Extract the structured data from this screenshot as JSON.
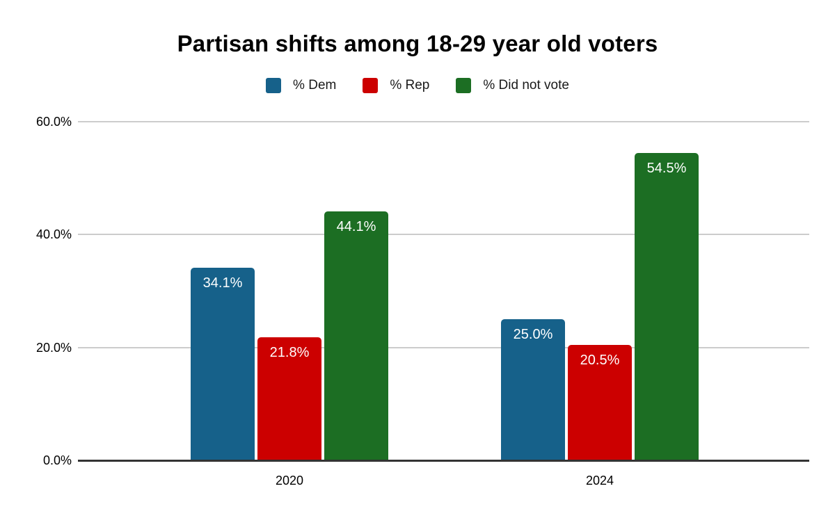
{
  "chart_data": {
    "type": "bar",
    "title": "Partisan shifts among 18-29 year old voters",
    "categories": [
      "2020",
      "2024"
    ],
    "series": [
      {
        "name": "% Dem",
        "color": "#16618a",
        "values": [
          34.1,
          25.0
        ],
        "labels": [
          "34.1%",
          "25.0%"
        ]
      },
      {
        "name": "% Rep",
        "color": "#cc0000",
        "values": [
          21.8,
          20.5
        ],
        "labels": [
          "21.8%",
          "20.5%"
        ]
      },
      {
        "name": "% Did not vote",
        "color": "#1c6e23",
        "values": [
          44.1,
          54.5
        ],
        "labels": [
          "44.1%",
          "54.5%"
        ]
      }
    ],
    "yticks": [
      {
        "value": 0,
        "label": "0.0%"
      },
      {
        "value": 20,
        "label": "20.0%"
      },
      {
        "value": 40,
        "label": "40.0%"
      },
      {
        "value": 60,
        "label": "60.0%"
      }
    ],
    "ylim": [
      0,
      60
    ],
    "xlabel": "",
    "ylabel": "",
    "grid": true,
    "legend_position": "top",
    "colors": {
      "background": "#ffffff",
      "gridline": "#cccccc",
      "axis_line": "#333333",
      "bar_label_text": "#ffffff",
      "title_text": "#000000"
    }
  }
}
